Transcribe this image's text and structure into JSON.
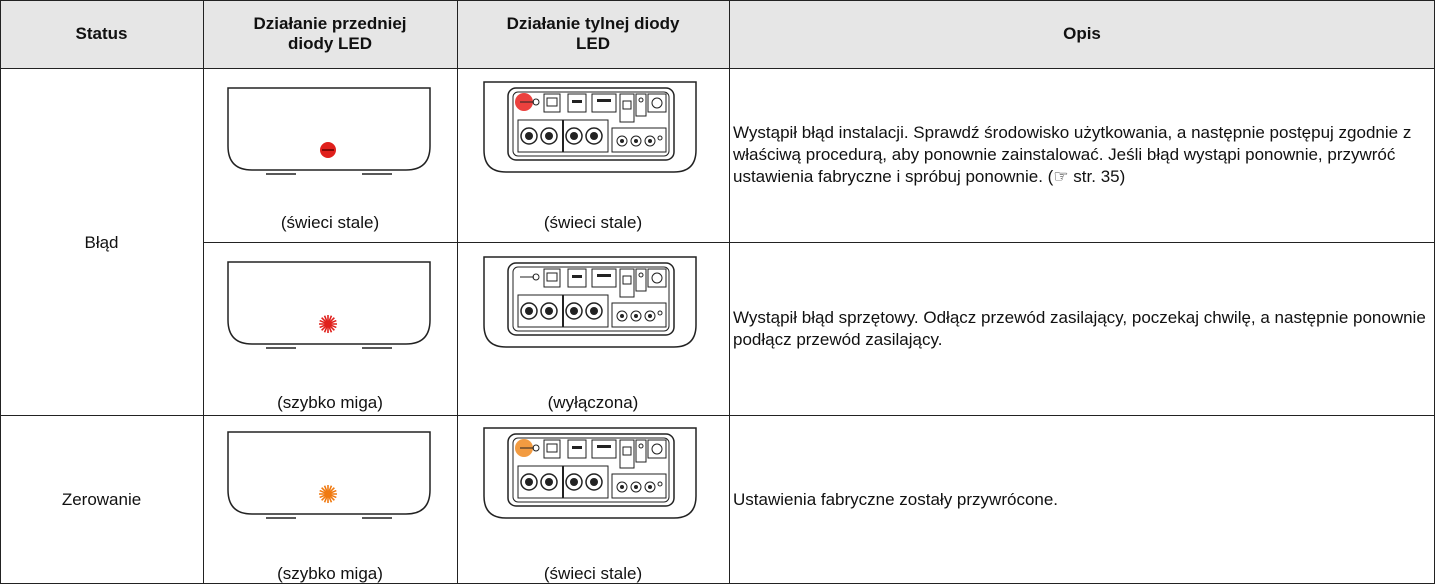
{
  "header": {
    "status": "Status",
    "front": "Działanie przedniej diody LED",
    "back": "Działanie tylnej diody LED",
    "description": "Opis"
  },
  "rows": [
    {
      "status": "Błąd",
      "front_caption": "(świeci stale)",
      "back_caption": "(świeci stale)",
      "description": "Wystąpił błąd instalacji. Sprawdź środowisko użytkowania, a następnie postępuj zgodnie z właściwą procedurą, aby ponownie zainstalować. Jeśli błąd wystąpi ponownie, przywróć ustawienia fabryczne i spróbuj ponownie. (☞ str. 35)"
    },
    {
      "front_caption": "(szybko miga)",
      "back_caption": "(wyłączona)",
      "description": "Wystąpił błąd sprzętowy. Odłącz przewód zasilający, poczekaj chwilę, a następnie ponownie podłącz przewód zasilający."
    },
    {
      "status": "Zerowanie",
      "front_caption": "(szybko miga)",
      "back_caption": "(świeci stale)",
      "description": "Ustawienia fabryczne zostały przywrócone."
    }
  ]
}
